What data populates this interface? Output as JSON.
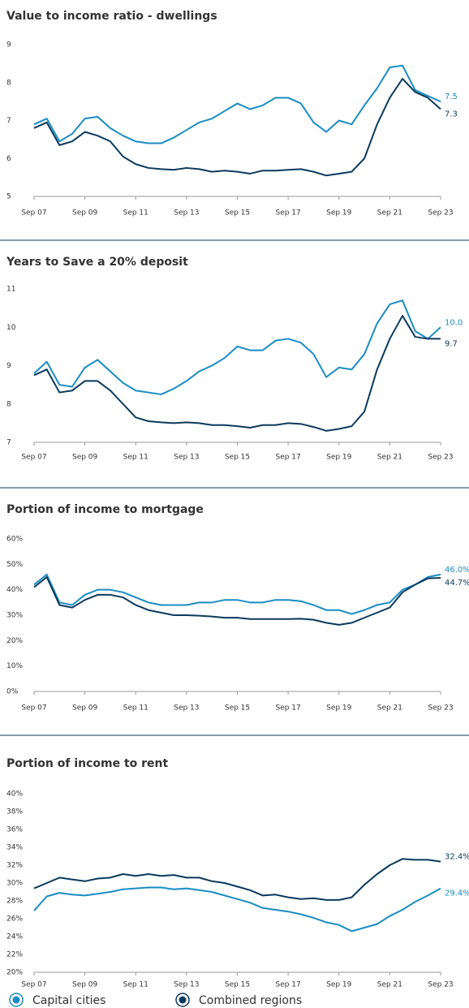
{
  "chart_data": [
    {
      "type": "line",
      "title": "Value to income ratio - dwellings",
      "categories": [
        "Sep 07",
        null,
        null,
        null,
        "Sep 09",
        null,
        null,
        null,
        "Sep 11",
        null,
        null,
        null,
        "Sep 13",
        null,
        null,
        null,
        "Sep 15",
        null,
        null,
        null,
        "Sep 17",
        null,
        null,
        null,
        "Sep 19",
        null,
        null,
        null,
        "Sep 21",
        null,
        null,
        null,
        "Sep 23"
      ],
      "ylim": [
        5,
        9
      ],
      "yticks": [
        5,
        6,
        7,
        8,
        9
      ],
      "series": [
        {
          "name": "Capital cities",
          "color": "#1a8cc4",
          "values": [
            6.9,
            7.05,
            6.45,
            6.65,
            7.05,
            7.1,
            6.8,
            6.6,
            6.45,
            6.4,
            6.4,
            6.55,
            6.75,
            6.95,
            7.05,
            7.25,
            7.45,
            7.3,
            7.4,
            7.6,
            7.6,
            7.45,
            6.95,
            6.7,
            7.0,
            6.9,
            7.4,
            7.85,
            8.4,
            8.45,
            7.8,
            7.65,
            7.5
          ]
        },
        {
          "name": "Combined regions",
          "color": "#0b3a5c",
          "values": [
            6.8,
            6.95,
            6.35,
            6.45,
            6.7,
            6.6,
            6.45,
            6.05,
            5.85,
            5.75,
            5.72,
            5.7,
            5.75,
            5.72,
            5.65,
            5.68,
            5.65,
            5.6,
            5.68,
            5.68,
            5.7,
            5.72,
            5.65,
            5.55,
            5.6,
            5.65,
            6.0,
            6.9,
            7.6,
            8.1,
            7.75,
            7.6,
            7.3
          ]
        }
      ]
    },
    {
      "type": "line",
      "title": "Years to Save a 20% deposit",
      "categories": [
        "Sep 07",
        null,
        null,
        null,
        "Sep 09",
        null,
        null,
        null,
        "Sep 11",
        null,
        null,
        null,
        "Sep 13",
        null,
        null,
        null,
        "Sep 15",
        null,
        null,
        null,
        "Sep 17",
        null,
        null,
        null,
        "Sep 19",
        null,
        null,
        null,
        "Sep 21",
        null,
        null,
        null,
        "Sep 23"
      ],
      "ylim": [
        7,
        11
      ],
      "yticks": [
        7,
        8,
        9,
        10,
        11
      ],
      "series": [
        {
          "name": "Capital cities",
          "color": "#1a8cc4",
          "values": [
            8.8,
            9.1,
            8.5,
            8.45,
            8.95,
            9.15,
            8.85,
            8.55,
            8.35,
            8.3,
            8.25,
            8.4,
            8.6,
            8.85,
            9.0,
            9.2,
            9.5,
            9.4,
            9.4,
            9.65,
            9.7,
            9.6,
            9.3,
            8.7,
            8.95,
            8.9,
            9.3,
            10.1,
            10.6,
            10.7,
            9.9,
            9.7,
            10.0
          ],
          "value_labels": {
            "32": "10.0"
          }
        },
        {
          "name": "Combined regions",
          "color": "#0b3a5c",
          "values": [
            8.75,
            8.9,
            8.3,
            8.35,
            8.6,
            8.6,
            8.35,
            8.0,
            7.65,
            7.55,
            7.52,
            7.5,
            7.52,
            7.5,
            7.45,
            7.45,
            7.42,
            7.38,
            7.45,
            7.45,
            7.5,
            7.48,
            7.4,
            7.3,
            7.35,
            7.42,
            7.8,
            8.9,
            9.7,
            10.3,
            9.75,
            9.7,
            9.7
          ]
        }
      ]
    },
    {
      "type": "line",
      "title": "Portion of income to mortgage",
      "categories": [
        "Sep 07",
        null,
        null,
        null,
        "Sep 09",
        null,
        null,
        null,
        "Sep 11",
        null,
        null,
        null,
        "Sep 13",
        null,
        null,
        null,
        "Sep 15",
        null,
        null,
        null,
        "Sep 17",
        null,
        null,
        null,
        "Sep 19",
        null,
        null,
        null,
        "Sep 21",
        null,
        null,
        null,
        "Sep 23"
      ],
      "ylim": [
        0,
        60
      ],
      "yticks": [
        {
          "value": 0,
          "label": "0%"
        },
        {
          "value": 10,
          "label": "10%"
        },
        {
          "value": 20,
          "label": "20%"
        },
        {
          "value": 30,
          "label": "30%"
        },
        {
          "value": 40,
          "label": "40%"
        },
        {
          "value": 50,
          "label": "50%"
        },
        {
          "value": 60,
          "label": "60%"
        }
      ],
      "series": [
        {
          "name": "Capital cities",
          "color": "#1a8cc4",
          "values": [
            42,
            46,
            35,
            34,
            38,
            40,
            40,
            39,
            37,
            35,
            34,
            34,
            34,
            35,
            35,
            36,
            36,
            35,
            35,
            36,
            36,
            35.5,
            34,
            32,
            32,
            30.5,
            32,
            34,
            35,
            40,
            42,
            45,
            46.0
          ],
          "value_labels": {
            "32": "46.0%"
          }
        },
        {
          "name": "Combined regions",
          "color": "#0b3a5c",
          "values": [
            41,
            45,
            34,
            33,
            36,
            38,
            38,
            37,
            34,
            32,
            31,
            30,
            30,
            29.8,
            29.5,
            29,
            29,
            28.5,
            28.5,
            28.5,
            28.5,
            28.6,
            28.2,
            27,
            26.2,
            27,
            29,
            31,
            33,
            39,
            42,
            44.5,
            44.7
          ],
          "value_labels": {
            "32": "44.7%"
          }
        }
      ]
    },
    {
      "type": "line",
      "title": "Portion of income to rent",
      "categories": [
        "Sep 07",
        null,
        null,
        null,
        "Sep 09",
        null,
        null,
        null,
        "Sep 11",
        null,
        null,
        null,
        "Sep 13",
        null,
        null,
        null,
        "Sep 15",
        null,
        null,
        null,
        "Sep 17",
        null,
        null,
        null,
        "Sep 19",
        null,
        null,
        null,
        "Sep 21",
        null,
        null,
        null,
        "Sep 23"
      ],
      "ylim": [
        20,
        40
      ],
      "yticks": [
        {
          "value": 20,
          "label": "20%"
        },
        {
          "value": 22,
          "label": "22%"
        },
        {
          "value": 24,
          "label": "24%"
        },
        {
          "value": 26,
          "label": "26%"
        },
        {
          "value": 28,
          "label": "28%"
        },
        {
          "value": 30,
          "label": "30%"
        },
        {
          "value": 32,
          "label": "32%"
        },
        {
          "value": 34,
          "label": "34%"
        },
        {
          "value": 36,
          "label": "36%"
        },
        {
          "value": 38,
          "label": "38%"
        },
        {
          "value": 40,
          "label": "40%"
        }
      ],
      "series": [
        {
          "name": "Capital cities",
          "color": "#1a8cc4",
          "values": [
            26.9,
            28.5,
            28.9,
            28.7,
            28.6,
            28.8,
            29.0,
            29.3,
            29.4,
            29.5,
            29.5,
            29.3,
            29.4,
            29.2,
            29.0,
            28.6,
            28.2,
            27.8,
            27.2,
            27.0,
            26.8,
            26.5,
            26.1,
            25.6,
            25.3,
            24.6,
            25.0,
            25.4,
            26.3,
            27.0,
            27.9,
            28.6,
            29.4
          ],
          "value_labels": {
            "32": "29.4%"
          }
        },
        {
          "name": "Combined regions",
          "color": "#0b3a5c",
          "values": [
            29.4,
            30.0,
            30.6,
            30.4,
            30.2,
            30.5,
            30.6,
            31.0,
            30.8,
            31.0,
            30.8,
            30.9,
            30.6,
            30.6,
            30.2,
            30.0,
            29.6,
            29.2,
            28.6,
            28.7,
            28.4,
            28.2,
            28.3,
            28.1,
            28.1,
            28.4,
            29.8,
            31.0,
            32.0,
            32.7,
            32.6,
            32.6,
            32.4
          ],
          "value_labels": {
            "32": "32.4%"
          }
        }
      ]
    }
  ]
}
